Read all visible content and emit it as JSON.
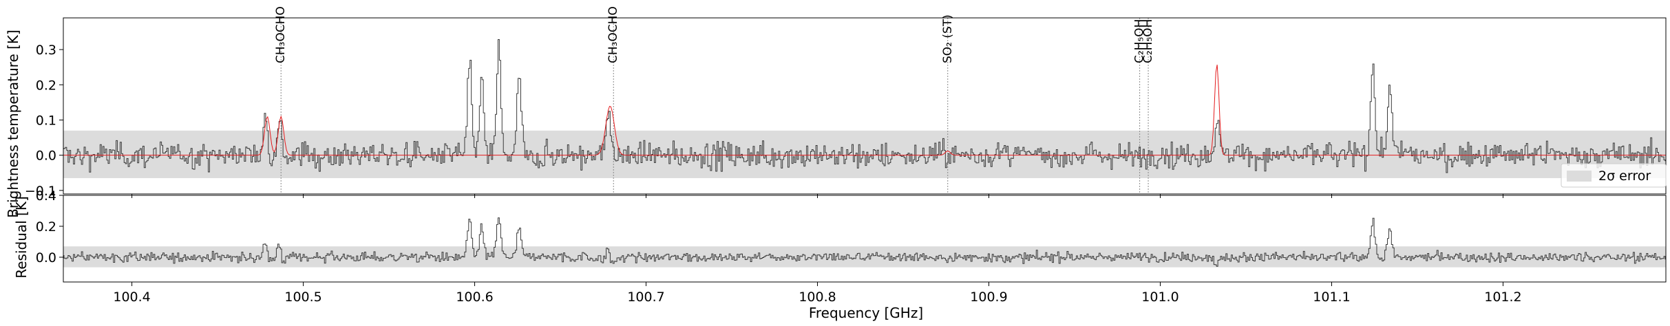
{
  "chart_data": {
    "type": "line",
    "panels": [
      {
        "name": "spectrum",
        "ylabel": "Brightness temperature [K]",
        "ylim": [
          -0.11,
          0.39
        ],
        "yticks": [
          -0.1,
          0.0,
          0.1,
          0.2,
          0.3
        ],
        "ytick_labels": [
          "−0.1",
          "0.0",
          "0.1",
          "0.2",
          "0.3"
        ],
        "error_band": [
          -0.065,
          0.07
        ],
        "legend": {
          "label": "2σ error",
          "placement": "lower-right"
        }
      },
      {
        "name": "residual",
        "ylabel": "Residual [K]",
        "ylim": [
          -0.16,
          0.4
        ],
        "yticks": [
          0.0,
          0.2,
          0.4
        ],
        "ytick_labels": [
          "0.0",
          "0.2",
          "0.4"
        ],
        "error_band": [
          -0.065,
          0.07
        ]
      }
    ],
    "xlabel": "Frequency [GHz]",
    "xlim": [
      100.36,
      101.295
    ],
    "xticks": [
      100.4,
      100.5,
      100.6,
      100.7,
      100.8,
      100.9,
      101.0,
      101.1,
      101.2
    ],
    "xtick_labels": [
      "100.4",
      "100.5",
      "100.6",
      "100.7",
      "100.8",
      "100.9",
      "101.0",
      "101.1",
      "101.2"
    ],
    "line_markers": [
      {
        "freq": 100.487,
        "label": "CH₃OCHO"
      },
      {
        "freq": 100.681,
        "label": "CH₃OCHO"
      },
      {
        "freq": 100.876,
        "label": "SO₂ (ST)"
      },
      {
        "freq": 100.988,
        "label": "C₂H₅OH"
      },
      {
        "freq": 100.993,
        "label": "C₂H₅OH"
      }
    ],
    "observed_peaks": [
      {
        "freq": 100.478,
        "value": 0.13
      },
      {
        "freq": 100.486,
        "value": 0.11
      },
      {
        "freq": 100.597,
        "value": 0.26
      },
      {
        "freq": 100.604,
        "value": 0.22
      },
      {
        "freq": 100.614,
        "value": 0.3
      },
      {
        "freq": 100.626,
        "value": 0.22
      },
      {
        "freq": 100.678,
        "value": 0.13
      },
      {
        "freq": 101.033,
        "value": 0.1
      },
      {
        "freq": 101.124,
        "value": 0.27
      },
      {
        "freq": 101.134,
        "value": 0.21
      }
    ],
    "model_peaks": [
      {
        "freq": 100.479,
        "value": 0.11,
        "width": 0.0016
      },
      {
        "freq": 100.487,
        "value": 0.11,
        "width": 0.0016
      },
      {
        "freq": 100.679,
        "value": 0.14,
        "width": 0.0025
      },
      {
        "freq": 100.876,
        "value": 0.012,
        "width": 0.0015
      },
      {
        "freq": 101.033,
        "value": 0.26,
        "width": 0.0013
      }
    ],
    "colors": {
      "observed": "#3a3a3a",
      "model": "#e41a1c",
      "band": "#dcdcdc",
      "marker": "#888888"
    }
  }
}
